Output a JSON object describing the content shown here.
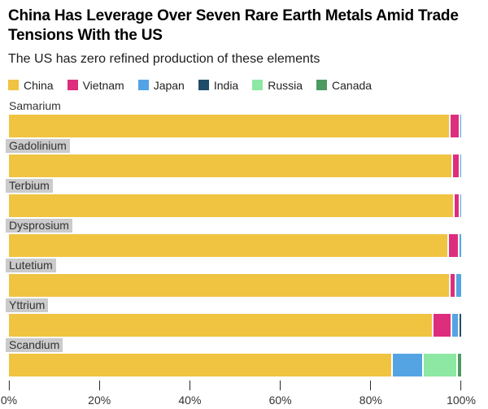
{
  "header": {
    "title_line1": "China Has Leverage Over Seven Rare Earth Metals Amid Trade",
    "title_line2": "Tensions With the US",
    "subtitle": "The US has zero refined production of these elements"
  },
  "legend": {
    "items": [
      "China",
      "Vietnam",
      "Japan",
      "India",
      "Russia",
      "Canada"
    ]
  },
  "chart_data": {
    "type": "bar",
    "orientation": "horizontal",
    "stacked": true,
    "unit": "percent share of global refined production",
    "xlim": [
      0,
      100
    ],
    "x_ticks": [
      "0%",
      "20%",
      "40%",
      "60%",
      "80%",
      "100%"
    ],
    "grid": false,
    "legend_position": "top",
    "colors": {
      "China": "#F0C341",
      "Vietnam": "#DD2E7E",
      "Japan": "#54A4E4",
      "India": "#1F4D69",
      "Russia": "#8CE8A2",
      "Canada": "#4C9A62"
    },
    "rows": [
      {
        "label": "Samarium",
        "highlight": false,
        "segments": [
          {
            "country": "China",
            "value": 97.3
          },
          {
            "country": "Vietnam",
            "value": 2.1
          },
          {
            "country": "Japan",
            "value": 0.6
          }
        ]
      },
      {
        "label": "Gadolinium",
        "highlight": true,
        "segments": [
          {
            "country": "China",
            "value": 97.8
          },
          {
            "country": "Vietnam",
            "value": 1.7
          },
          {
            "country": "Japan",
            "value": 0.5
          }
        ]
      },
      {
        "label": "Terbium",
        "highlight": true,
        "segments": [
          {
            "country": "China",
            "value": 98.2
          },
          {
            "country": "Vietnam",
            "value": 1.3
          },
          {
            "country": "Japan",
            "value": 0.5
          }
        ]
      },
      {
        "label": "Dysprosium",
        "highlight": true,
        "segments": [
          {
            "country": "China",
            "value": 96.9
          },
          {
            "country": "Vietnam",
            "value": 2.4
          },
          {
            "country": "Japan",
            "value": 0.7
          }
        ]
      },
      {
        "label": "Lutetium",
        "highlight": true,
        "segments": [
          {
            "country": "China",
            "value": 97.3
          },
          {
            "country": "Vietnam",
            "value": 1.2
          },
          {
            "country": "Japan",
            "value": 1.5
          }
        ]
      },
      {
        "label": "Yttrium",
        "highlight": true,
        "segments": [
          {
            "country": "China",
            "value": 93.6
          },
          {
            "country": "Vietnam",
            "value": 4.0
          },
          {
            "country": "Japan",
            "value": 1.6
          },
          {
            "country": "India",
            "value": 0.8
          }
        ]
      },
      {
        "label": "Scandium",
        "highlight": true,
        "segments": [
          {
            "country": "China",
            "value": 84.5
          },
          {
            "country": "Japan",
            "value": 6.8
          },
          {
            "country": "Russia",
            "value": 7.6
          },
          {
            "country": "Canada",
            "value": 1.1
          }
        ]
      }
    ]
  }
}
